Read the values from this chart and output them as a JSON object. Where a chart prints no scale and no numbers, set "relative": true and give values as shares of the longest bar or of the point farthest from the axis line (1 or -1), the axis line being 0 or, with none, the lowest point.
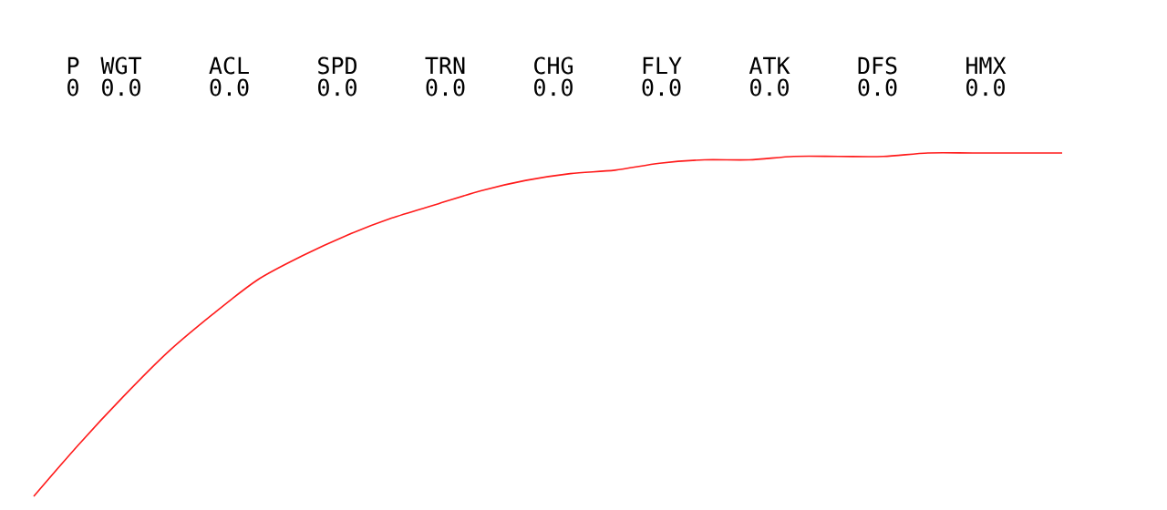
{
  "chart_data": {
    "type": "line",
    "relative": true,
    "marker": "none",
    "color": "#ff1a1a",
    "categories": [
      null,
      null,
      null,
      null,
      null,
      null,
      null,
      null,
      null,
      null,
      null,
      null,
      null,
      null,
      null,
      null,
      null,
      null,
      null,
      null,
      null,
      null,
      null,
      null
    ],
    "values": [
      0,
      0.15,
      0.29,
      0.42,
      0.53,
      0.63,
      0.7,
      0.76,
      0.81,
      0.85,
      0.89,
      0.92,
      0.94,
      0.95,
      0.97,
      0.98,
      0.98,
      0.99,
      0.99,
      0.99,
      1.0,
      1.0,
      1.0,
      1.0
    ],
    "annotations": [
      "P",
      "WGT",
      "ACL",
      "SPD",
      "TRN",
      "CHG",
      "FLY",
      "ATK",
      "DFS",
      "HMX",
      "0",
      "0.0",
      "0.0",
      "0.0",
      "0.0",
      "0.0",
      "0.0",
      "0.0",
      "0.0",
      "0.0"
    ]
  }
}
